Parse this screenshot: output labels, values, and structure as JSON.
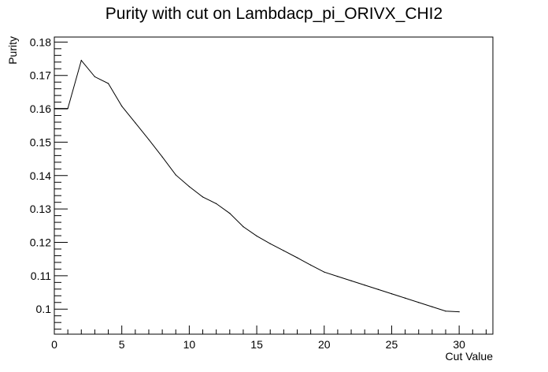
{
  "chart_data": {
    "type": "line",
    "title": "Purity with cut on Lambdacp_pi_ORIVX_CHI2",
    "xlabel": "Cut Value",
    "ylabel": "Purity",
    "xlim": [
      0,
      32.5
    ],
    "ylim": [
      0.0925,
      0.1815
    ],
    "grid": false,
    "x_ticks": [
      0,
      5,
      10,
      15,
      20,
      25,
      30
    ],
    "y_ticks": [
      0.1,
      0.11,
      0.12,
      0.13,
      0.14,
      0.15,
      0.16,
      0.17,
      0.18
    ],
    "x_tick_labels": [
      "0",
      "5",
      "10",
      "15",
      "20",
      "25",
      "30"
    ],
    "y_tick_labels": [
      "0.1",
      "0.11",
      "0.12",
      "0.13",
      "0.14",
      "0.15",
      "0.16",
      "0.17",
      "0.18"
    ],
    "series": [
      {
        "x": [
          1,
          2,
          3,
          4,
          5,
          6,
          7,
          8,
          9,
          10,
          11,
          12,
          13,
          14,
          15,
          16,
          17,
          18,
          19,
          20,
          21,
          22,
          23,
          24,
          25,
          26,
          27,
          28,
          29,
          30
        ],
        "y": [
          0.1601,
          0.1745,
          0.1696,
          0.1676,
          0.1608,
          0.1558,
          0.1508,
          0.1456,
          0.1402,
          0.1367,
          0.1336,
          0.1316,
          0.1287,
          0.1247,
          0.1219,
          0.1196,
          0.1175,
          0.1154,
          0.1132,
          0.1111,
          0.1098,
          0.1085,
          0.1072,
          0.1059,
          0.1046,
          0.1033,
          0.102,
          0.1007,
          0.0994,
          0.0992
        ]
      }
    ]
  }
}
